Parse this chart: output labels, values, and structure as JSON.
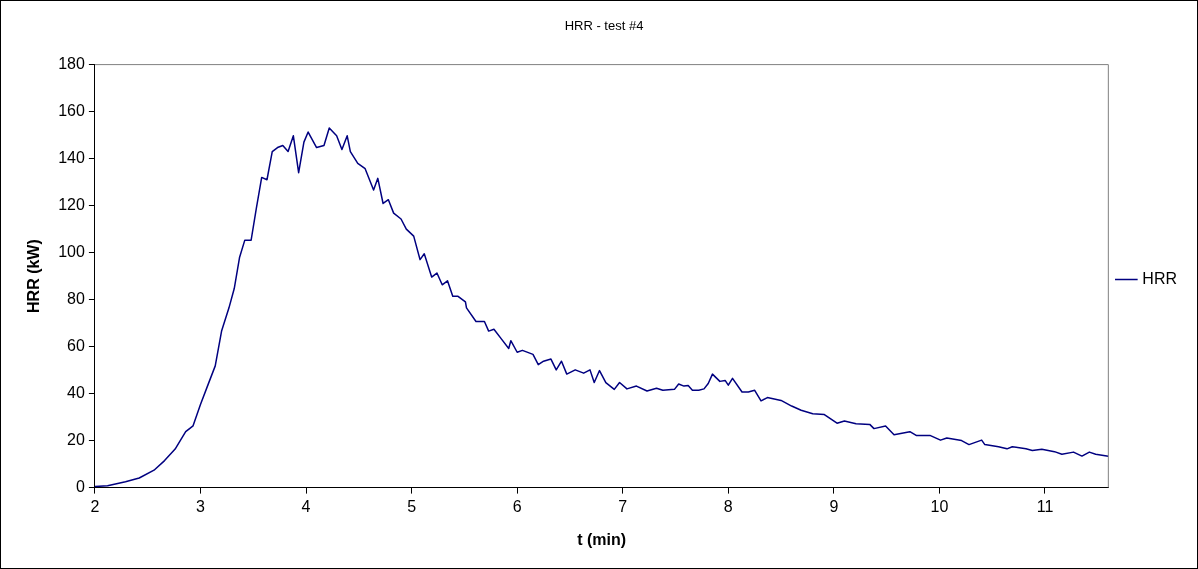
{
  "chart_data": {
    "type": "line",
    "title": "HRR - test #4",
    "xlabel": "t (min)",
    "ylabel": "HRR (kW)",
    "xlim": [
      2,
      11.6
    ],
    "xticks": [
      2,
      3,
      4,
      5,
      6,
      7,
      8,
      9,
      10,
      11
    ],
    "ylim": [
      0,
      180
    ],
    "yticks": [
      0,
      20,
      40,
      60,
      80,
      100,
      120,
      140,
      160,
      180
    ],
    "grid": false,
    "legend": "right",
    "marker": "none",
    "line_style": "solid",
    "series": [
      {
        "name": "HRR",
        "color": "#000080",
        "x": [
          2,
          2.12,
          2.29,
          2.42,
          2.56,
          2.66,
          2.76,
          2.86,
          2.93,
          3.0,
          3.07,
          3.14,
          3.2,
          3.27,
          3.32,
          3.37,
          3.42,
          3.48,
          3.53,
          3.58,
          3.63,
          3.68,
          3.73,
          3.78,
          3.83,
          3.88,
          3.93,
          3.98,
          4.02,
          4.1,
          4.17,
          4.22,
          4.29,
          4.34,
          4.39,
          4.42,
          4.49,
          4.56,
          4.64,
          4.68,
          4.73,
          4.78,
          4.83,
          4.9,
          4.95,
          5.02,
          5.08,
          5.12,
          5.19,
          5.24,
          5.29,
          5.34,
          5.39,
          5.44,
          5.51,
          5.52,
          5.61,
          5.69,
          5.73,
          5.78,
          5.85,
          5.92,
          5.94,
          6.0,
          6.05,
          6.15,
          6.2,
          6.25,
          6.32,
          6.37,
          6.42,
          6.47,
          6.55,
          6.63,
          6.69,
          6.73,
          6.78,
          6.84,
          6.92,
          6.97,
          7.04,
          7.13,
          7.23,
          7.32,
          7.38,
          7.49,
          7.53,
          7.58,
          7.62,
          7.66,
          7.72,
          7.77,
          7.81,
          7.85,
          7.92,
          7.97,
          8.0,
          8.04,
          8.13,
          8.19,
          8.25,
          8.31,
          8.37,
          8.5,
          8.6,
          8.69,
          8.8,
          8.91,
          9.03,
          9.1,
          9.21,
          9.34,
          9.38,
          9.49,
          9.57,
          9.72,
          9.78,
          9.91,
          10.01,
          10.07,
          10.21,
          10.28,
          10.4,
          10.43,
          10.56,
          10.64,
          10.69,
          10.82,
          10.88,
          10.97,
          11.09,
          11.16,
          11.27,
          11.35,
          11.42,
          11.48,
          11.6
        ],
        "values": [
          0.5,
          0.8,
          2.5,
          4.1,
          7.4,
          11.5,
          16.4,
          23.8,
          26.3,
          35.4,
          43.6,
          51.8,
          66.6,
          76.5,
          84.7,
          97.9,
          105.3,
          105.3,
          119,
          132,
          131,
          143,
          144.7,
          145.6,
          143,
          149.7,
          134,
          147,
          151.3,
          144.7,
          145.6,
          153,
          149.7,
          143.9,
          149.7,
          143,
          138,
          135.7,
          126.6,
          131.6,
          120.9,
          122.5,
          116.8,
          114.3,
          110,
          107,
          97,
          99.5,
          89.6,
          91.3,
          86.3,
          88,
          81.4,
          81.4,
          79,
          76.5,
          70.7,
          70.7,
          66.6,
          67.4,
          63.3,
          59.2,
          62.5,
          57.6,
          58.4,
          56.7,
          52.3,
          53.8,
          54.7,
          50.1,
          53.8,
          48.3,
          50.1,
          48.7,
          50.1,
          44.7,
          49.8,
          44.7,
          41.8,
          44.7,
          42,
          43.2,
          41.1,
          42.3,
          41.4,
          41.8,
          44.1,
          43.2,
          43.4,
          41.4,
          41.4,
          42,
          44.3,
          48.3,
          45.2,
          45.6,
          43.6,
          46.5,
          40.7,
          40.7,
          41.4,
          36.9,
          38.3,
          37.1,
          34.7,
          32.9,
          31.4,
          31.1,
          27.4,
          28.3,
          27.2,
          26.9,
          25.1,
          26.2,
          22.5,
          23.8,
          22.2,
          22.2,
          20.2,
          21.1,
          20,
          18.3,
          20.2,
          18.3,
          17.4,
          16.5,
          17.4,
          16.5,
          15.8,
          16.3,
          15.3,
          14.2,
          15.1,
          13.4,
          15.1,
          14.2,
          13.3
        ]
      }
    ]
  }
}
